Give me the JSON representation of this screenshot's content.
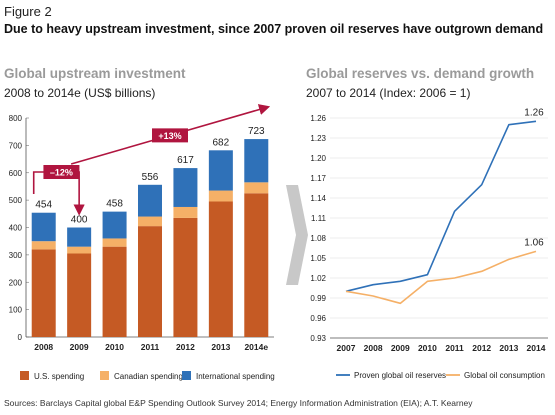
{
  "figure": {
    "label": "Figure 2",
    "title": "Due to heavy upstream investment, since 2007 proven oil reserves have outgrown demand",
    "source": "Sources: Barclays Capital global E&P Spending Outlook Survey 2014; Energy Information Administration (EIA); A.T. Kearney"
  },
  "colors": {
    "us": "#c55a24",
    "canadian": "#f5b067",
    "international": "#2f71b8",
    "annotation": "#b0153f",
    "reserves_line": "#2f71b8",
    "consumption_line": "#f5b067",
    "arrow_panel": "#c8c8c8"
  },
  "chart_data": [
    {
      "type": "bar",
      "stacked": true,
      "title": "Global upstream investment",
      "subtitle": "2008 to 2014e (US$ billions)",
      "categories": [
        "2008",
        "2009",
        "2010",
        "2011",
        "2012",
        "2013",
        "2014e"
      ],
      "series": [
        {
          "name": "U.S. spending",
          "values": [
            320,
            305,
            330,
            405,
            435,
            495,
            525
          ]
        },
        {
          "name": "Canadian spending",
          "values": [
            30,
            25,
            30,
            35,
            40,
            40,
            40
          ]
        },
        {
          "name": "International spending",
          "values": [
            104,
            70,
            98,
            116,
            142,
            147,
            158
          ]
        }
      ],
      "totals": [
        "454",
        "400",
        "458",
        "556",
        "617",
        "682",
        "723"
      ],
      "ylim": [
        0,
        800
      ],
      "yticks": [
        "0",
        "100",
        "200",
        "300",
        "400",
        "500",
        "600",
        "700",
        "800"
      ],
      "annotations": [
        {
          "text": "–12%",
          "from": "2008",
          "to": "2009"
        },
        {
          "text": "+13%",
          "from": "2009",
          "to": "2014e"
        }
      ],
      "legend_position": "bottom"
    },
    {
      "type": "line",
      "title": "Global reserves vs. demand growth",
      "subtitle": "2007 to 2014 (Index: 2006 = 1)",
      "x": [
        "2007",
        "2008",
        "2009",
        "2010",
        "2011",
        "2012",
        "2013",
        "2014"
      ],
      "series": [
        {
          "name": "Proven global oil reserves",
          "values": [
            1.0,
            1.01,
            1.015,
            1.025,
            1.12,
            1.16,
            1.25,
            1.255
          ]
        },
        {
          "name": "Global oil consumption",
          "values": [
            1.0,
            0.993,
            0.982,
            1.015,
            1.02,
            1.03,
            1.048,
            1.06
          ]
        }
      ],
      "end_labels": [
        "1.26",
        "1.06"
      ],
      "ylim": [
        0.93,
        1.26
      ],
      "yticks": [
        "0.93",
        "0.96",
        "0.99",
        "1.02",
        "1.05",
        "1.08",
        "1.11",
        "1.14",
        "1.17",
        "1.20",
        "1.23",
        "1.26"
      ],
      "grid": true,
      "legend_position": "bottom"
    }
  ]
}
